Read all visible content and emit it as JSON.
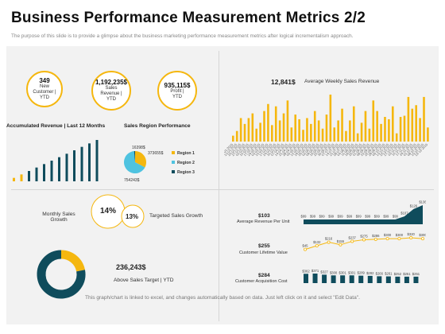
{
  "header": {
    "title": "Business Performance Measurement Metrics 2/2",
    "subtitle": "The purpose of this slide is to provide a glimpse about the business marketing performance measurement metrics after  logical incrementalism approach."
  },
  "kpis": [
    {
      "value": "349",
      "label": "New Customer | YTD"
    },
    {
      "value": "1,192,235$",
      "label": "Sales Revenue | YTD"
    },
    {
      "value": "935,115$",
      "label": "Profit | YTD"
    }
  ],
  "colors": {
    "accent": "#f5b70f",
    "primary": "#0f4c5c",
    "light_blue": "#4fc3e0",
    "panel": "#f2f2f2"
  },
  "footer": "This graph/chart is linked to excel, and changes automatically based on data. Just left click on it and select \"Edit Data\".",
  "monthly_sales": {
    "label": "Monthly Sales Growth",
    "value": "14%"
  },
  "targeted": {
    "label": "Targeted Sales Growth",
    "value": "13%"
  },
  "above_target": {
    "label": "Above Sales Target | YTD",
    "value": "236,243$"
  },
  "chart_data": [
    {
      "type": "bar",
      "title": "Accumulated Revenue | Last 12 Months",
      "values": [
        1,
        2,
        3,
        4,
        5,
        6,
        7,
        8,
        9,
        10,
        11,
        12
      ],
      "colors": [
        "#f5b70f",
        "#f5b70f",
        "#0f4c5c",
        "#0f4c5c",
        "#0f4c5c",
        "#0f4c5c",
        "#0f4c5c",
        "#0f4c5c",
        "#0f4c5c",
        "#0f4c5c",
        "#0f4c5c",
        "#0f4c5c"
      ]
    },
    {
      "type": "pie",
      "title": "Sales Region Performance",
      "labels": [
        "Region 1",
        "Region 2",
        "Region 3"
      ],
      "values": [
        373655,
        754243,
        16398
      ],
      "value_labels": [
        "373655$",
        "754243$",
        "16398$"
      ],
      "colors": [
        "#f5b70f",
        "#4fc3e0",
        "#0f4c5c"
      ]
    },
    {
      "type": "bar",
      "title": "Average Weekly Sales Revenue",
      "headline": "12,841$",
      "categories": [
        "06-01-2015",
        "13-01-2015",
        "20-01-2015",
        "27-01-2015",
        "03-02-2015",
        "10-02-2015",
        "17-02-2015",
        "24-02-2015",
        "03-03-2015",
        "10-03-2015",
        "17-03-2015",
        "24-03-2015",
        "31-03-2015",
        "07-04-2015",
        "14-04-2015",
        "21-04-2015",
        "28-04-2015",
        "05-05-2015",
        "12-05-2015",
        "19-05-2015",
        "26-05-2015",
        "02-06-2015",
        "09-06-2015",
        "16-06-2015",
        "23-06-2015",
        "30-06-2015",
        "07-07-2015",
        "14-07-2015",
        "21-07-2015",
        "28-07-2015",
        "04-08-2015",
        "11-08-2015",
        "18-08-2015",
        "25-08-2015",
        "01-09-2015",
        "08-09-2015",
        "15-09-2015",
        "22-09-2015",
        "29-09-2015",
        "06-10-2015",
        "13-10-2015",
        "20-10-2015",
        "27-10-2015",
        "03-11-2015",
        "10-11-2015",
        "17-11-2015",
        "24-11-2015",
        "01-12-2015",
        "08-12-2015",
        "15-12-2015",
        "22-12-2015"
      ],
      "values": [
        5,
        9,
        20,
        15,
        20,
        24,
        11,
        16,
        26,
        32,
        14,
        30,
        18,
        24,
        35,
        12,
        23,
        19,
        10,
        20,
        15,
        26,
        18,
        11,
        23,
        40,
        12,
        18,
        28,
        9,
        18,
        30,
        7,
        16,
        26,
        11,
        35,
        26,
        15,
        21,
        19,
        30,
        7,
        21,
        22,
        38,
        28,
        31,
        20,
        38,
        12
      ],
      "ylim": [
        0,
        42
      ],
      "color": "#f5b70f"
    },
    {
      "type": "area",
      "title": "Average Revenue Per Unit",
      "headline": "$103",
      "values": [
        99,
        99,
        99,
        99,
        99,
        99,
        99,
        99,
        99,
        99,
        99,
        107,
        126,
        136
      ],
      "value_labels": [
        "$99",
        "$99",
        "$99",
        "$99",
        "$99",
        "$99",
        "$99",
        "$99",
        "$99",
        "$99",
        "$99",
        "$107",
        "$126",
        "$136"
      ],
      "color": "#0f4c5c"
    },
    {
      "type": "line",
      "title": "Customer Lifetime Value",
      "headline": "$255",
      "values": [
        45,
        132,
        216,
        155,
        237,
        275,
        286,
        300,
        300,
        320,
        300
      ],
      "value_labels": [
        "$45",
        "$132",
        "$216",
        "$155",
        "$237",
        "$275",
        "$286",
        "$300",
        "$300",
        "$320",
        "$300"
      ],
      "color": "#f5b70f"
    },
    {
      "type": "bar",
      "title": "Customer Acquisition  Cost",
      "headline": "$284",
      "values": [
        362,
        371,
        327,
        300,
        301,
        301,
        289,
        282,
        266,
        261,
        252,
        251,
        251
      ],
      "value_labels": [
        "$362",
        "$371",
        "$327",
        "$300",
        "$301",
        "$301",
        "$289",
        "$282",
        "$266",
        "$261",
        "$252",
        "$251",
        "$251"
      ],
      "color": "#0f4c5c"
    },
    {
      "type": "pie",
      "title": "Above Sales Target | YTD",
      "values": [
        22,
        78
      ],
      "colors": [
        "#f5b70f",
        "#0f4c5c"
      ]
    }
  ]
}
